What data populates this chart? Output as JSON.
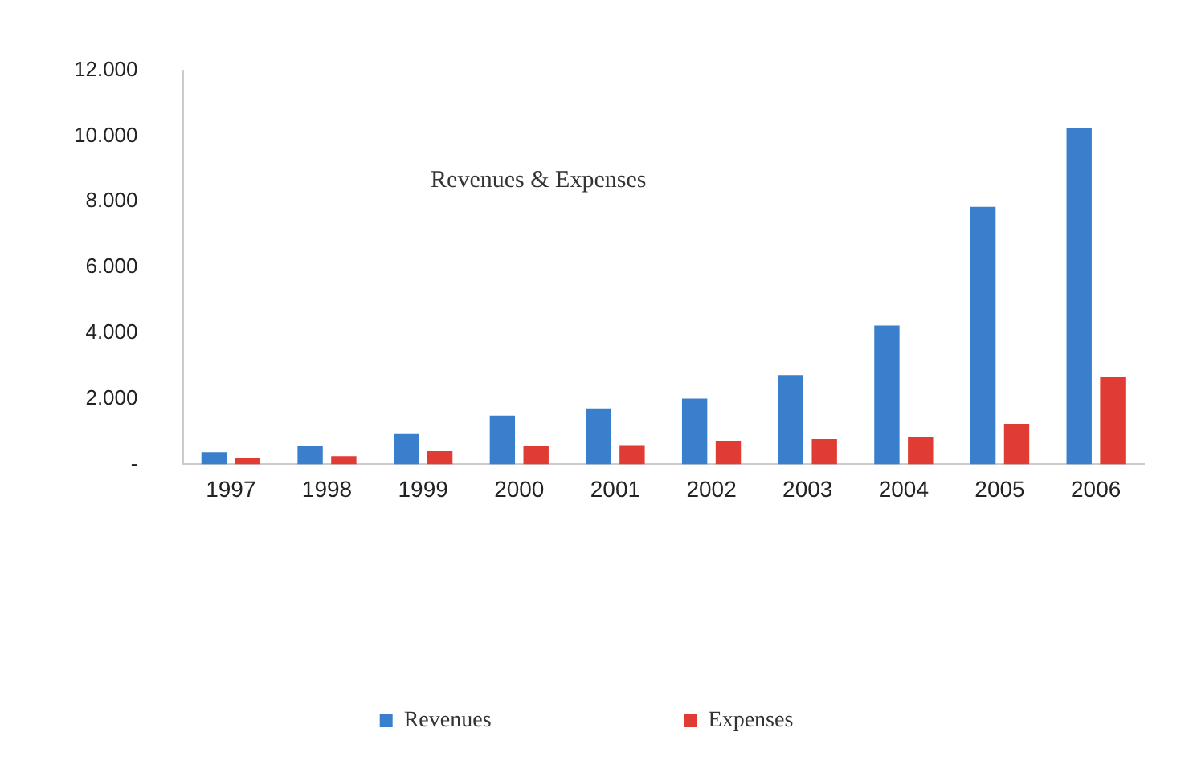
{
  "chart_data": {
    "type": "bar",
    "title": "Revenues & Expenses",
    "categories": [
      "1997",
      "1998",
      "1999",
      "2000",
      "2001",
      "2002",
      "2003",
      "2004",
      "2005",
      "2006"
    ],
    "series": [
      {
        "name": "Revenues",
        "color": "#3a7fcc",
        "values": [
          370,
          550,
          920,
          1480,
          1700,
          2000,
          2720,
          4230,
          7840,
          10250
        ]
      },
      {
        "name": "Expenses",
        "color": "#e03c34",
        "values": [
          200,
          250,
          400,
          550,
          560,
          710,
          770,
          830,
          1230,
          2650
        ]
      }
    ],
    "ylim": [
      0,
      12000
    ],
    "yticks": [
      {
        "value": 0,
        "label": "-"
      },
      {
        "value": 2000,
        "label": "2.000"
      },
      {
        "value": 4000,
        "label": "4.000"
      },
      {
        "value": 6000,
        "label": "6.000"
      },
      {
        "value": 8000,
        "label": "8.000"
      },
      {
        "value": 10000,
        "label": "10.000"
      },
      {
        "value": 12000,
        "label": "12.000"
      }
    ],
    "grid": false,
    "legend": "bottom"
  }
}
